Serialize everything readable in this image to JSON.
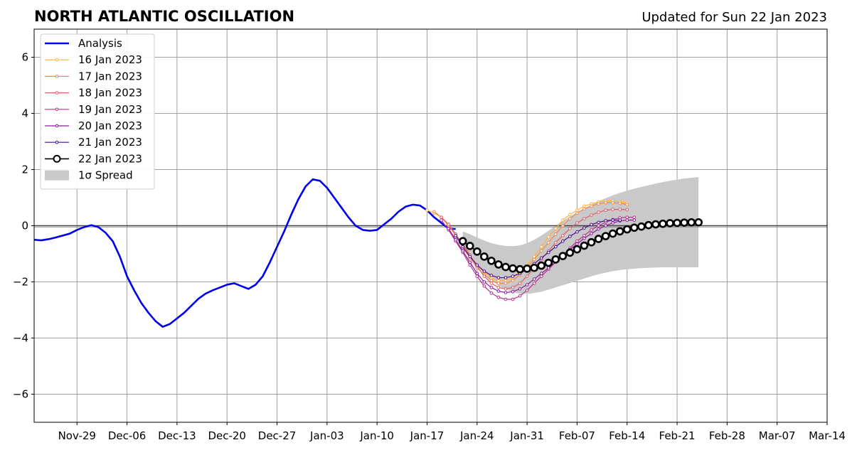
{
  "chart_data": {
    "type": "line",
    "title": "NORTH ATLANTIC OSCILLATION",
    "subtitle": "Updated for Sun 22 Jan 2023",
    "xlabel": "",
    "ylabel": "",
    "xlim": [
      "2022-11-23",
      "2023-03-14"
    ],
    "ylim": [
      -7,
      7
    ],
    "grid": true,
    "legend_position": "top-left",
    "x_tick_labels": [
      "Nov-29",
      "Dec-06",
      "Dec-13",
      "Dec-20",
      "Dec-27",
      "Jan-03",
      "Jan-10",
      "Jan-17",
      "Jan-24",
      "Jan-31",
      "Feb-07",
      "Feb-14",
      "Feb-21",
      "Feb-28",
      "Mar-07",
      "Mar-14"
    ],
    "x_tick_dates": [
      "2022-11-29",
      "2022-12-06",
      "2022-12-13",
      "2022-12-20",
      "2022-12-27",
      "2023-01-03",
      "2023-01-10",
      "2023-01-17",
      "2023-01-24",
      "2023-01-31",
      "2023-02-07",
      "2023-02-14",
      "2023-02-21",
      "2023-02-28",
      "2023-03-07",
      "2023-03-14"
    ],
    "y_ticks": [
      -6,
      -4,
      -2,
      0,
      2,
      4,
      6
    ],
    "y_tick_labels": [
      "−6",
      "−4",
      "−2",
      "0",
      "2",
      "4",
      "6"
    ],
    "analysis": {
      "name": "Analysis",
      "color": "#0000ee",
      "points": [
        [
          "2022-11-23",
          -0.5
        ],
        [
          "2022-11-24",
          -0.52
        ],
        [
          "2022-11-25",
          -0.48
        ],
        [
          "2022-11-26",
          -0.42
        ],
        [
          "2022-11-27",
          -0.35
        ],
        [
          "2022-11-28",
          -0.28
        ],
        [
          "2022-11-29",
          -0.15
        ],
        [
          "2022-11-30",
          -0.05
        ],
        [
          "2022-12-01",
          0.02
        ],
        [
          "2022-12-02",
          -0.05
        ],
        [
          "2022-12-03",
          -0.25
        ],
        [
          "2022-12-04",
          -0.55
        ],
        [
          "2022-12-05",
          -1.1
        ],
        [
          "2022-12-06",
          -1.8
        ],
        [
          "2022-12-07",
          -2.3
        ],
        [
          "2022-12-08",
          -2.75
        ],
        [
          "2022-12-09",
          -3.1
        ],
        [
          "2022-12-10",
          -3.4
        ],
        [
          "2022-12-11",
          -3.6
        ],
        [
          "2022-12-12",
          -3.5
        ],
        [
          "2022-12-13",
          -3.3
        ],
        [
          "2022-12-14",
          -3.1
        ],
        [
          "2022-12-15",
          -2.85
        ],
        [
          "2022-12-16",
          -2.6
        ],
        [
          "2022-12-17",
          -2.42
        ],
        [
          "2022-12-18",
          -2.3
        ],
        [
          "2022-12-19",
          -2.2
        ],
        [
          "2022-12-20",
          -2.1
        ],
        [
          "2022-12-21",
          -2.05
        ],
        [
          "2022-12-22",
          -2.15
        ],
        [
          "2022-12-23",
          -2.25
        ],
        [
          "2022-12-24",
          -2.1
        ],
        [
          "2022-12-25",
          -1.8
        ],
        [
          "2022-12-26",
          -1.3
        ],
        [
          "2022-12-27",
          -0.75
        ],
        [
          "2022-12-28",
          -0.2
        ],
        [
          "2022-12-29",
          0.4
        ],
        [
          "2022-12-30",
          0.95
        ],
        [
          "2022-12-31",
          1.4
        ],
        [
          "2023-01-01",
          1.65
        ],
        [
          "2023-01-02",
          1.6
        ],
        [
          "2023-01-03",
          1.35
        ],
        [
          "2023-01-04",
          1.0
        ],
        [
          "2023-01-05",
          0.65
        ],
        [
          "2023-01-06",
          0.3
        ],
        [
          "2023-01-07",
          0.0
        ],
        [
          "2023-01-08",
          -0.15
        ],
        [
          "2023-01-09",
          -0.18
        ],
        [
          "2023-01-10",
          -0.15
        ],
        [
          "2023-01-11",
          0.05
        ],
        [
          "2023-01-12",
          0.25
        ],
        [
          "2023-01-13",
          0.5
        ],
        [
          "2023-01-14",
          0.68
        ],
        [
          "2023-01-15",
          0.75
        ],
        [
          "2023-01-16",
          0.72
        ],
        [
          "2023-01-17",
          0.55
        ],
        [
          "2023-01-18",
          0.3
        ],
        [
          "2023-01-19",
          0.1
        ],
        [
          "2023-01-20",
          -0.1
        ],
        [
          "2023-01-21",
          -0.12
        ]
      ]
    },
    "forecasts": [
      {
        "name": "16 Jan 2023",
        "color": "#fcb33a",
        "start": "2023-01-17",
        "values": [
          0.55,
          0.45,
          0.3,
          0.05,
          -0.3,
          -0.7,
          -1.05,
          -1.4,
          -1.65,
          -1.85,
          -1.95,
          -1.95,
          -1.85,
          -1.65,
          -1.4,
          -1.1,
          -0.75,
          -0.4,
          -0.1,
          0.2,
          0.4,
          0.55,
          0.7,
          0.78,
          0.85,
          0.88,
          0.88,
          0.85,
          0.8
        ]
      },
      {
        "name": "17 Jan 2023",
        "color": "#f0894e",
        "start": "2023-01-18",
        "values": [
          0.5,
          0.3,
          0.0,
          -0.35,
          -0.75,
          -1.15,
          -1.5,
          -1.75,
          -1.95,
          -2.05,
          -2.05,
          -1.95,
          -1.75,
          -1.5,
          -1.2,
          -0.9,
          -0.6,
          -0.3,
          0.0,
          0.25,
          0.45,
          0.6,
          0.7,
          0.78,
          0.82,
          0.82,
          0.8,
          0.75
        ]
      },
      {
        "name": "18 Jan 2023",
        "color": "#dc5f68",
        "start": "2023-01-19",
        "values": [
          0.3,
          0.05,
          -0.3,
          -0.65,
          -1.05,
          -1.45,
          -1.8,
          -2.05,
          -2.2,
          -2.25,
          -2.2,
          -2.05,
          -1.8,
          -1.5,
          -1.2,
          -0.9,
          -0.6,
          -0.35,
          -0.1,
          0.1,
          0.25,
          0.38,
          0.48,
          0.55,
          0.58,
          0.58,
          0.57
        ]
      },
      {
        "name": "19 Jan 2023",
        "color": "#b83289",
        "start": "2023-01-19",
        "values": [
          0.2,
          -0.15,
          -0.55,
          -0.95,
          -1.4,
          -1.8,
          -2.15,
          -2.4,
          -2.55,
          -2.62,
          -2.62,
          -2.5,
          -2.3,
          -2.05,
          -1.8,
          -1.55,
          -1.3,
          -1.05,
          -0.8,
          -0.55,
          -0.35,
          -0.15,
          0.0,
          0.12,
          0.22,
          0.28,
          0.3,
          0.3
        ]
      },
      {
        "name": "20 Jan 2023",
        "color": "#8c1a9e",
        "start": "2023-01-20",
        "values": [
          -0.1,
          -0.5,
          -0.9,
          -1.3,
          -1.7,
          -2.0,
          -2.2,
          -2.33,
          -2.38,
          -2.35,
          -2.25,
          -2.1,
          -1.9,
          -1.7,
          -1.5,
          -1.28,
          -1.05,
          -0.85,
          -0.65,
          -0.45,
          -0.28,
          -0.12,
          0.0,
          0.1,
          0.17,
          0.2,
          0.2
        ]
      },
      {
        "name": "21 Jan 2023",
        "color": "#4a0c8f",
        "start": "2023-01-21",
        "values": [
          -0.35,
          -0.75,
          -1.1,
          -1.4,
          -1.62,
          -1.77,
          -1.85,
          -1.85,
          -1.8,
          -1.7,
          -1.55,
          -1.35,
          -1.15,
          -0.95,
          -0.75,
          -0.55,
          -0.38,
          -0.22,
          -0.08,
          0.04,
          0.12,
          0.18,
          0.2,
          0.2
        ]
      },
      {
        "name": "22 Jan 2023",
        "color": "#000000",
        "start": "2023-01-22",
        "values": [
          -0.55,
          -0.72,
          -0.92,
          -1.1,
          -1.25,
          -1.38,
          -1.47,
          -1.52,
          -1.55,
          -1.53,
          -1.5,
          -1.42,
          -1.32,
          -1.2,
          -1.08,
          -0.96,
          -0.84,
          -0.71,
          -0.59,
          -0.47,
          -0.37,
          -0.28,
          -0.2,
          -0.13,
          -0.07,
          -0.03,
          0.02,
          0.05,
          0.07,
          0.09,
          0.1,
          0.11,
          0.12,
          0.12
        ]
      }
    ],
    "spread": {
      "name": "1σ Spread",
      "color": "#c9c9c9",
      "start": "2023-01-22",
      "upper": [
        -0.2,
        -0.3,
        -0.42,
        -0.53,
        -0.62,
        -0.68,
        -0.72,
        -0.73,
        -0.7,
        -0.62,
        -0.5,
        -0.35,
        -0.18,
        0.0,
        0.17,
        0.33,
        0.48,
        0.62,
        0.75,
        0.87,
        0.98,
        1.08,
        1.17,
        1.25,
        1.32,
        1.38,
        1.44,
        1.5,
        1.55,
        1.6,
        1.64,
        1.68,
        1.71,
        1.73
      ],
      "lower": [
        -0.85,
        -1.15,
        -1.45,
        -1.72,
        -1.95,
        -2.13,
        -2.27,
        -2.37,
        -2.42,
        -2.43,
        -2.4,
        -2.35,
        -2.28,
        -2.2,
        -2.12,
        -2.04,
        -1.96,
        -1.88,
        -1.8,
        -1.73,
        -1.67,
        -1.62,
        -1.58,
        -1.55,
        -1.53,
        -1.51,
        -1.5,
        -1.49,
        -1.48,
        -1.48,
        -1.48,
        -1.48,
        -1.48,
        -1.48
      ]
    }
  }
}
